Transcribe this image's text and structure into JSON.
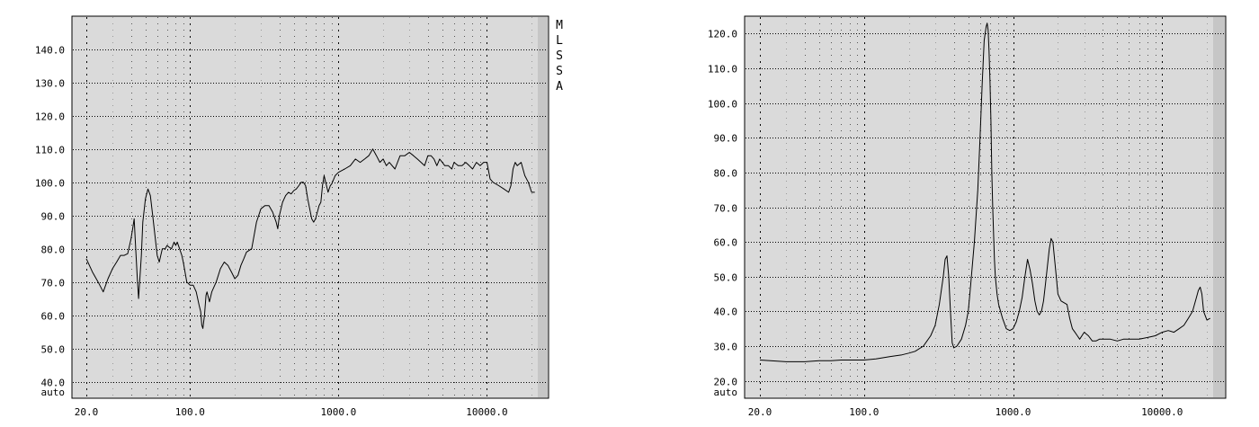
{
  "chart_data": [
    {
      "type": "line",
      "xscale": "log",
      "xlim": [
        20,
        22000
      ],
      "ylim": [
        35,
        150
      ],
      "xticks": [
        20,
        100,
        1000,
        10000
      ],
      "xtick_labels": [
        "20.0",
        "100.0",
        "1000.0",
        "10000.0"
      ],
      "yticks": [
        40,
        50,
        60,
        70,
        80,
        90,
        100,
        110,
        120,
        130,
        140
      ],
      "ytick_labels": [
        "40.0",
        "50.0",
        "60.0",
        "70.0",
        "80.0",
        "90.0",
        "100.0",
        "110.0",
        "120.0",
        "130.0",
        "140.0"
      ],
      "ybottom_label": "auto",
      "side_labels": [
        "M",
        "L",
        "S",
        "S",
        "A"
      ],
      "grid": true,
      "series": [
        {
          "x": [
            20,
            22,
            24,
            26,
            28,
            30,
            32,
            34,
            36,
            38,
            40,
            41,
            42,
            43,
            44,
            45,
            47,
            48,
            50,
            52,
            54,
            56,
            58,
            60,
            62,
            65,
            68,
            70,
            72,
            75,
            78,
            80,
            82,
            85,
            88,
            90,
            95,
            100,
            105,
            110,
            115,
            118,
            120,
            122,
            125,
            128,
            130,
            135,
            140,
            150,
            160,
            170,
            180,
            190,
            200,
            210,
            220,
            230,
            240,
            260,
            280,
            300,
            320,
            340,
            360,
            380,
            390,
            400,
            420,
            440,
            460,
            480,
            500,
            520,
            540,
            560,
            580,
            600,
            620,
            640,
            660,
            680,
            700,
            720,
            740,
            760,
            780,
            800,
            820,
            850,
            880,
            900,
            950,
            1000,
            1100,
            1200,
            1300,
            1400,
            1500,
            1600,
            1700,
            1800,
            1900,
            2000,
            2100,
            2200,
            2400,
            2600,
            2800,
            3000,
            3200,
            3400,
            3600,
            3800,
            4000,
            4200,
            4400,
            4600,
            4800,
            5000,
            5200,
            5500,
            5800,
            6000,
            6400,
            6800,
            7200,
            7600,
            8000,
            8500,
            9000,
            9500,
            10000,
            10500,
            11000,
            12000,
            13000,
            14000,
            14500,
            15000,
            15500,
            16000,
            17000,
            18000,
            19000,
            20000,
            21000
          ],
          "y": [
            77,
            73,
            70,
            67,
            71,
            74,
            76,
            78,
            78,
            78.5,
            83,
            86,
            89,
            80,
            72,
            65,
            78,
            88,
            95,
            98,
            96,
            90,
            84,
            78,
            76,
            80,
            80,
            81,
            80.5,
            80,
            82,
            81,
            82,
            80,
            78,
            76,
            70,
            69,
            69,
            67,
            63,
            61,
            57,
            56,
            60,
            66,
            67,
            64,
            67,
            70,
            74,
            76,
            75,
            73,
            71,
            72,
            75,
            77,
            79,
            80,
            88,
            92,
            93,
            93,
            91,
            88,
            86,
            90,
            94,
            96,
            97,
            96.5,
            97.5,
            98,
            99,
            100,
            100,
            99,
            95,
            92,
            89,
            88,
            89,
            91,
            93,
            94,
            99,
            102,
            100,
            97,
            99,
            99.5,
            102,
            103,
            104,
            105,
            107,
            106,
            107,
            108,
            110,
            108,
            106,
            107,
            105,
            106,
            104,
            108,
            108,
            109,
            108,
            107,
            106,
            105,
            108,
            108,
            107,
            105,
            107,
            106,
            105,
            105,
            104,
            106,
            105,
            105,
            106,
            105,
            104,
            106,
            105,
            106,
            106,
            101,
            100,
            99,
            98,
            97,
            99,
            104,
            106,
            105,
            106,
            102,
            100,
            97,
            97
          ]
        }
      ]
    },
    {
      "type": "line",
      "xscale": "log",
      "xlim": [
        20,
        22000
      ],
      "ylim": [
        15,
        125
      ],
      "xticks": [
        20,
        100,
        1000,
        10000
      ],
      "xtick_labels": [
        "20.0",
        "100.0",
        "1000.0",
        "10000.0"
      ],
      "yticks": [
        20,
        30,
        40,
        50,
        60,
        70,
        80,
        90,
        100,
        110,
        120
      ],
      "ytick_labels": [
        "20.0",
        "30.0",
        "40.0",
        "50.0",
        "60.0",
        "70.0",
        "80.0",
        "90.0",
        "100.0",
        "110.0",
        "120.0"
      ],
      "ybottom_label": "auto",
      "grid": true,
      "series": [
        {
          "x": [
            20,
            30,
            40,
            50,
            60,
            70,
            80,
            90,
            100,
            120,
            150,
            180,
            200,
            220,
            250,
            280,
            300,
            320,
            340,
            350,
            360,
            370,
            380,
            390,
            400,
            420,
            450,
            480,
            500,
            520,
            550,
            580,
            600,
            620,
            640,
            660,
            670,
            680,
            690,
            700,
            710,
            720,
            730,
            740,
            750,
            760,
            780,
            800,
            850,
            900,
            950,
            1000,
            1050,
            1100,
            1150,
            1200,
            1250,
            1300,
            1350,
            1400,
            1450,
            1500,
            1550,
            1600,
            1650,
            1700,
            1750,
            1800,
            1850,
            1900,
            1950,
            2000,
            2100,
            2200,
            2300,
            2400,
            2500,
            2600,
            2700,
            2800,
            3000,
            3200,
            3400,
            3600,
            3800,
            4000,
            4500,
            5000,
            5500,
            6000,
            7000,
            8000,
            9000,
            10000,
            11000,
            12000,
            13000,
            14000,
            15000,
            16000,
            17000,
            17500,
            18000,
            18500,
            19000,
            20000,
            21000
          ],
          "y": [
            26,
            25.5,
            25.5,
            25.8,
            25.8,
            26,
            26,
            26,
            26,
            26.3,
            27,
            27.5,
            28,
            28.5,
            30,
            33,
            36,
            42,
            50,
            55,
            56,
            50,
            40,
            31,
            29.5,
            30,
            32,
            36,
            40,
            48,
            60,
            75,
            90,
            105,
            118,
            122,
            123,
            121,
            115,
            106,
            95,
            80,
            70,
            62,
            55,
            50,
            45,
            42,
            38,
            35,
            34.5,
            35,
            37,
            40,
            44,
            50,
            55,
            52,
            48,
            43,
            40,
            39,
            40,
            43,
            48,
            53,
            58,
            61,
            60,
            55,
            50,
            45,
            43,
            42.5,
            42,
            38,
            35,
            34,
            33,
            32,
            34,
            33,
            31.5,
            31.5,
            32,
            32,
            32,
            31.5,
            32,
            32,
            32,
            32.5,
            33,
            34,
            34.5,
            34,
            35,
            36,
            38,
            40,
            44,
            46,
            47,
            45,
            40,
            37.5,
            38
          ]
        }
      ]
    }
  ]
}
